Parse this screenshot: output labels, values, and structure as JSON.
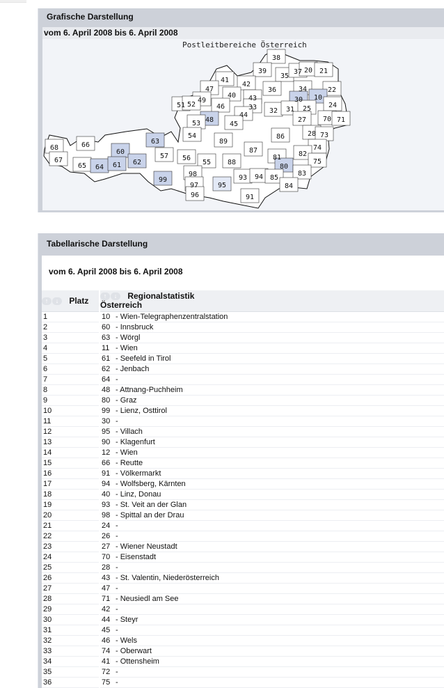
{
  "graphic": {
    "title": "Grafische Darstellung",
    "date_range": "vom 6. April 2008  bis 6. April 2008",
    "map_title": "Postleitbereiche Österreich",
    "highlight_color": "#c9d3ea",
    "highlight_light_color": "#e3e9f6",
    "regions": [
      {
        "code": "38"
      },
      {
        "code": "39"
      },
      {
        "code": "35"
      },
      {
        "code": "37"
      },
      {
        "code": "20"
      },
      {
        "code": "21"
      },
      {
        "code": "41"
      },
      {
        "code": "42"
      },
      {
        "code": "36"
      },
      {
        "code": "34"
      },
      {
        "code": "22"
      },
      {
        "code": "47"
      },
      {
        "code": "40"
      },
      {
        "code": "43"
      },
      {
        "code": "30",
        "highlight": "strong"
      },
      {
        "code": "10",
        "highlight": "strong"
      },
      {
        "code": "49"
      },
      {
        "code": "46"
      },
      {
        "code": "51"
      },
      {
        "code": "52"
      },
      {
        "code": "33"
      },
      {
        "code": "32"
      },
      {
        "code": "31"
      },
      {
        "code": "25"
      },
      {
        "code": "24"
      },
      {
        "code": "44"
      },
      {
        "code": "48",
        "highlight": "strong"
      },
      {
        "code": "53"
      },
      {
        "code": "45"
      },
      {
        "code": "27"
      },
      {
        "code": "70"
      },
      {
        "code": "71"
      },
      {
        "code": "86"
      },
      {
        "code": "28"
      },
      {
        "code": "73"
      },
      {
        "code": "54"
      },
      {
        "code": "89"
      },
      {
        "code": "63",
        "highlight": "strong"
      },
      {
        "code": "68"
      },
      {
        "code": "66"
      },
      {
        "code": "60",
        "highlight": "strong"
      },
      {
        "code": "57"
      },
      {
        "code": "87"
      },
      {
        "code": "74"
      },
      {
        "code": "82"
      },
      {
        "code": "81"
      },
      {
        "code": "67"
      },
      {
        "code": "65"
      },
      {
        "code": "64",
        "highlight": "strong"
      },
      {
        "code": "61",
        "highlight": "strong"
      },
      {
        "code": "62",
        "highlight": "strong"
      },
      {
        "code": "56"
      },
      {
        "code": "55"
      },
      {
        "code": "88"
      },
      {
        "code": "75"
      },
      {
        "code": "80",
        "highlight": "strong"
      },
      {
        "code": "83"
      },
      {
        "code": "98"
      },
      {
        "code": "99",
        "highlight": "strong"
      },
      {
        "code": "93"
      },
      {
        "code": "94"
      },
      {
        "code": "85"
      },
      {
        "code": "84"
      },
      {
        "code": "97"
      },
      {
        "code": "95",
        "highlight": "light"
      },
      {
        "code": "96"
      },
      {
        "code": "91"
      }
    ]
  },
  "table_section": {
    "title": "Tabellarische Darstellung",
    "date_range": "vom 6. April 2008  bis 6. April 2008",
    "col_rank": "Platz",
    "col_region": "Regionalstatistik",
    "col_region_sub": "Österreich",
    "sort_up_icon": "↑",
    "sort_down_icon": "↓",
    "rows": [
      {
        "rank": "1",
        "code": "10",
        "name": "- Wien-Telegraphenzentralstation"
      },
      {
        "rank": "2",
        "code": "60",
        "name": "- Innsbruck"
      },
      {
        "rank": "3",
        "code": "63",
        "name": "- Wörgl"
      },
      {
        "rank": "4",
        "code": "11",
        "name": "- Wien"
      },
      {
        "rank": "5",
        "code": "61",
        "name": "- Seefeld in Tirol"
      },
      {
        "rank": "6",
        "code": "62",
        "name": "- Jenbach"
      },
      {
        "rank": "7",
        "code": "64",
        "name": "-"
      },
      {
        "rank": "8",
        "code": "48",
        "name": "- Attnang-Puchheim"
      },
      {
        "rank": "9",
        "code": "80",
        "name": "- Graz"
      },
      {
        "rank": "10",
        "code": "99",
        "name": "- Lienz, Osttirol"
      },
      {
        "rank": "11",
        "code": "30",
        "name": "-"
      },
      {
        "rank": "12",
        "code": "95",
        "name": "- Villach"
      },
      {
        "rank": "13",
        "code": "90",
        "name": "- Klagenfurt"
      },
      {
        "rank": "14",
        "code": "12",
        "name": "- Wien"
      },
      {
        "rank": "15",
        "code": "66",
        "name": "- Reutte"
      },
      {
        "rank": "16",
        "code": "91",
        "name": "- Völkermarkt"
      },
      {
        "rank": "17",
        "code": "94",
        "name": "- Wolfsberg, Kärnten"
      },
      {
        "rank": "18",
        "code": "40",
        "name": "- Linz, Donau"
      },
      {
        "rank": "19",
        "code": "93",
        "name": "- St. Veit an der Glan"
      },
      {
        "rank": "20",
        "code": "98",
        "name": "- Spittal an der Drau"
      },
      {
        "rank": "21",
        "code": "24",
        "name": "-"
      },
      {
        "rank": "22",
        "code": "26",
        "name": "-"
      },
      {
        "rank": "23",
        "code": "27",
        "name": "- Wiener Neustadt"
      },
      {
        "rank": "24",
        "code": "70",
        "name": "- Eisenstadt"
      },
      {
        "rank": "25",
        "code": "28",
        "name": "-"
      },
      {
        "rank": "26",
        "code": "43",
        "name": "- St. Valentin, Niederösterreich"
      },
      {
        "rank": "27",
        "code": "47",
        "name": "-"
      },
      {
        "rank": "28",
        "code": "71",
        "name": "- Neusiedl am See"
      },
      {
        "rank": "29",
        "code": "42",
        "name": "-"
      },
      {
        "rank": "30",
        "code": "44",
        "name": "- Steyr"
      },
      {
        "rank": "31",
        "code": "45",
        "name": "-"
      },
      {
        "rank": "32",
        "code": "46",
        "name": "- Wels"
      },
      {
        "rank": "33",
        "code": "74",
        "name": "- Oberwart"
      },
      {
        "rank": "34",
        "code": "41",
        "name": "- Ottensheim"
      },
      {
        "rank": "35",
        "code": "72",
        "name": "-"
      },
      {
        "rank": "36",
        "code": "75",
        "name": "-"
      }
    ]
  }
}
